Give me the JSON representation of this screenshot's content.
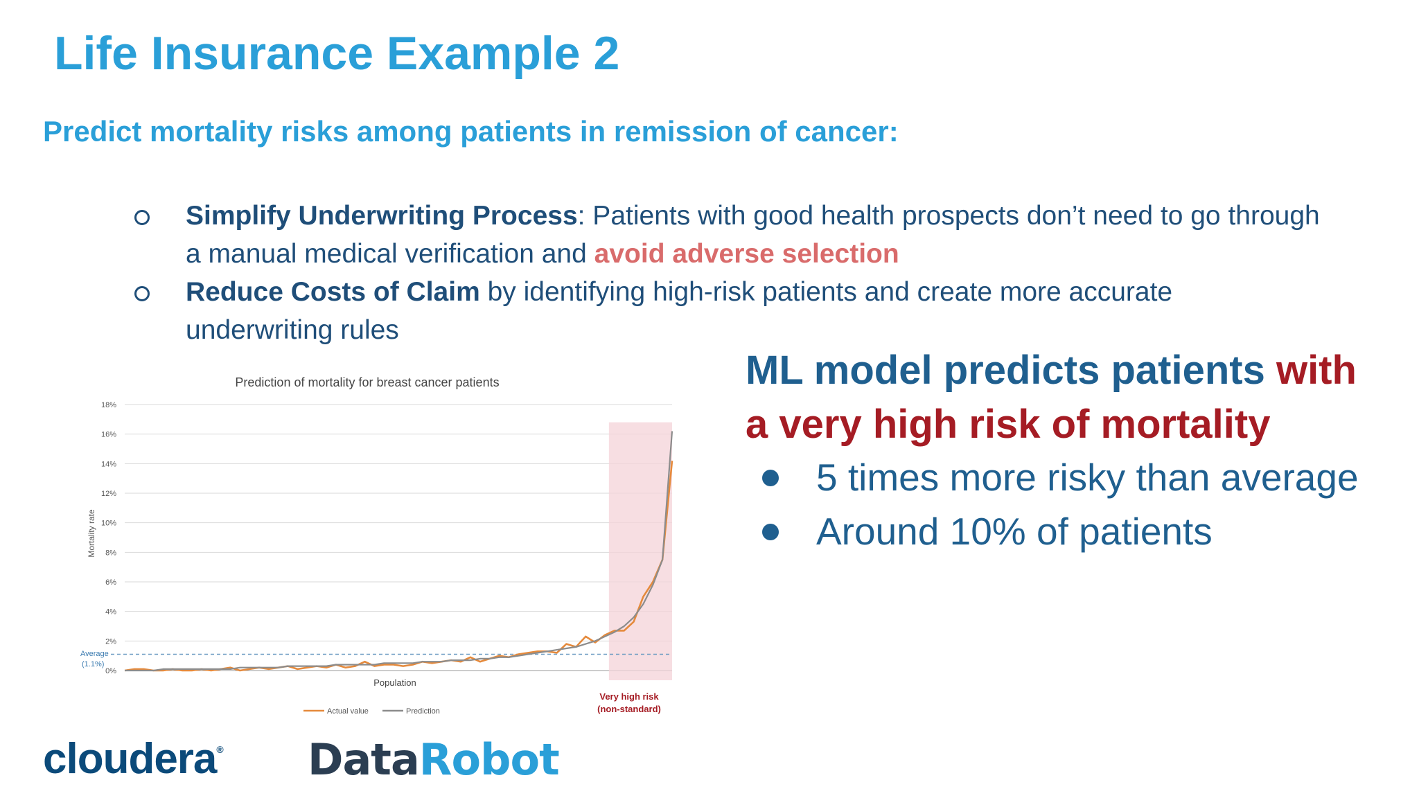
{
  "slide": {
    "title": "Life Insurance Example 2",
    "subtitle": "Predict mortality risks among patients in remission of cancer:"
  },
  "bullets": [
    {
      "bold": "Simplify Underwriting Process",
      "text": ": Patients with good health prospects don’t need to go through a manual medical verification and ",
      "highlight": "avoid adverse selection"
    },
    {
      "bold": "Reduce Costs of Claim",
      "text": " by identifying high-risk patients and create more accurate underwriting rules"
    }
  ],
  "callout": {
    "heading_blue": "ML model predicts patients ",
    "heading_red": "with a very high risk of mortality",
    "points": [
      "5 times more risky than average",
      "Around 10% of patients"
    ],
    "colors": {
      "blue": "#1f5f8f",
      "red": "#a51c24"
    }
  },
  "logos": {
    "cloudera": "cloudera",
    "datarobot_a": "Data",
    "datarobot_b": "Robot"
  },
  "chart_data": {
    "type": "line",
    "title": "Prediction of mortality for breast cancer patients",
    "xlabel": "Population",
    "ylabel": "Mortality rate",
    "ylim": [
      0,
      18
    ],
    "yticks": [
      "0%",
      "2%",
      "4%",
      "6%",
      "8%",
      "10%",
      "12%",
      "14%",
      "16%",
      "18%"
    ],
    "grid": true,
    "legend_position": "bottom",
    "average": {
      "value": 1.1,
      "label_line1": "Average",
      "label_line2": "(1.1%)"
    },
    "highlight_region": {
      "from_index": 51,
      "label_line1": "Very high risk",
      "label_line2": "(non-standard)"
    },
    "series": [
      {
        "name": "Actual value",
        "color": "#e58a3c",
        "values": [
          0.0,
          0.1,
          0.1,
          0.0,
          0.0,
          0.1,
          0.0,
          0.0,
          0.1,
          0.0,
          0.1,
          0.2,
          0.0,
          0.1,
          0.2,
          0.1,
          0.2,
          0.3,
          0.1,
          0.2,
          0.3,
          0.2,
          0.4,
          0.2,
          0.3,
          0.6,
          0.3,
          0.4,
          0.4,
          0.3,
          0.4,
          0.6,
          0.5,
          0.6,
          0.7,
          0.6,
          0.9,
          0.6,
          0.8,
          1.0,
          0.9,
          1.1,
          1.2,
          1.3,
          1.3,
          1.2,
          1.8,
          1.6,
          2.3,
          1.9,
          2.4,
          2.7,
          2.7,
          3.3,
          5.0,
          6.0,
          7.5,
          14.2
        ]
      },
      {
        "name": "Prediction",
        "color": "#8c8c8c",
        "values": [
          0.0,
          0.0,
          0.0,
          0.0,
          0.1,
          0.1,
          0.1,
          0.1,
          0.1,
          0.1,
          0.1,
          0.1,
          0.2,
          0.2,
          0.2,
          0.2,
          0.2,
          0.3,
          0.3,
          0.3,
          0.3,
          0.3,
          0.4,
          0.4,
          0.4,
          0.4,
          0.4,
          0.5,
          0.5,
          0.5,
          0.5,
          0.6,
          0.6,
          0.6,
          0.7,
          0.7,
          0.7,
          0.8,
          0.8,
          0.9,
          0.9,
          1.0,
          1.1,
          1.2,
          1.3,
          1.4,
          1.5,
          1.6,
          1.8,
          2.0,
          2.3,
          2.6,
          3.0,
          3.6,
          4.5,
          5.8,
          7.5,
          16.2
        ]
      }
    ]
  }
}
